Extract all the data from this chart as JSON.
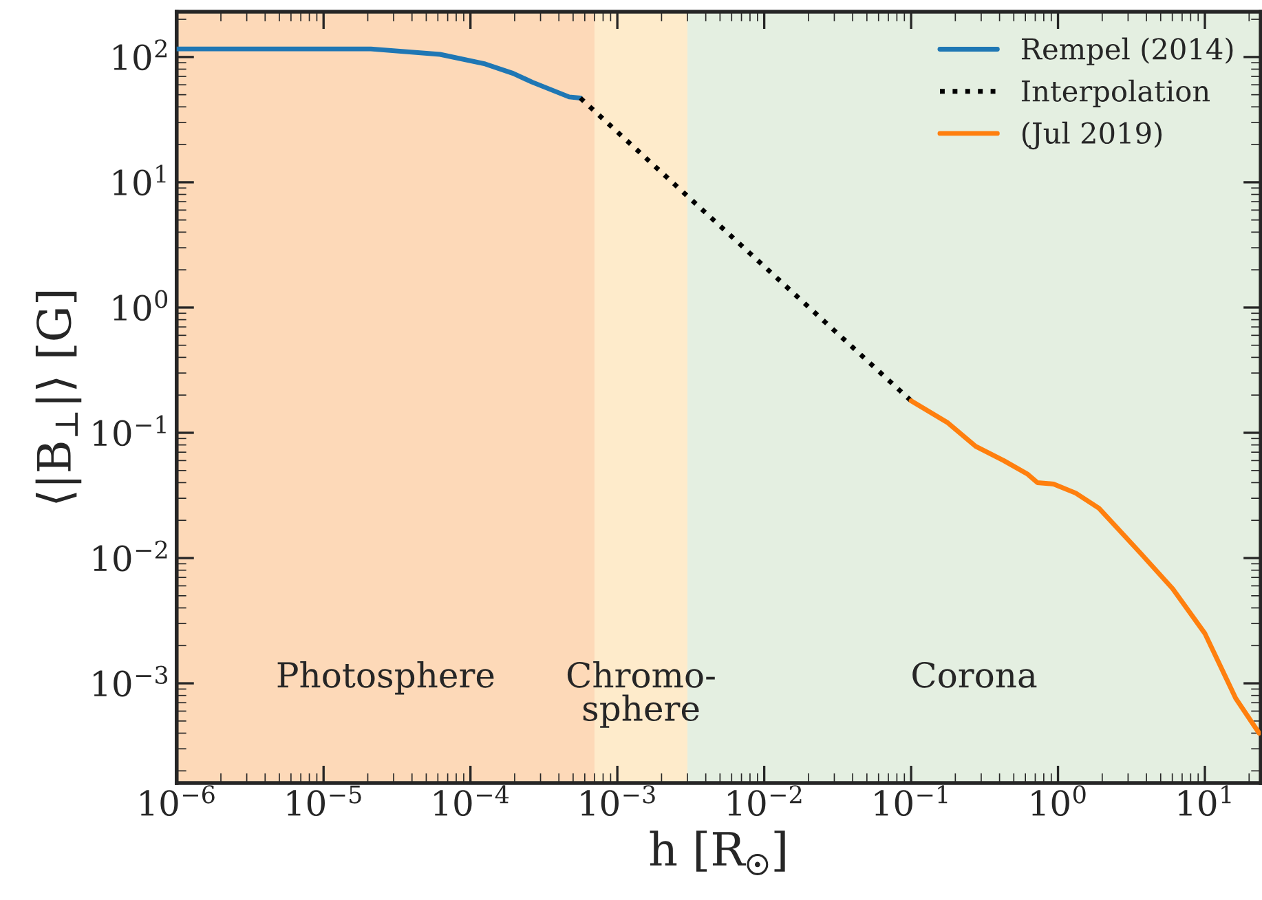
{
  "chart_data": {
    "type": "line",
    "xlabel": "h [R$_{☉}$]",
    "ylabel": "⟨|B$_{⊥}$|⟩ [G]",
    "log": "xy",
    "xlim": [
      1e-06,
      24
    ],
    "ylim": [
      0.00016,
      230
    ],
    "xticks": [
      {
        "value": 1e-06,
        "label": "10$^{−6}$"
      },
      {
        "value": 1e-05,
        "label": "10$^{−5}$"
      },
      {
        "value": 0.0001,
        "label": "10$^{−4}$"
      },
      {
        "value": 0.001,
        "label": "10$^{−3}$"
      },
      {
        "value": 0.01,
        "label": "10$^{−2}$"
      },
      {
        "value": 0.1,
        "label": "10$^{−1}$"
      },
      {
        "value": 1,
        "label": "10$^{0}$"
      },
      {
        "value": 10,
        "label": "10$^{1}$"
      }
    ],
    "yticks": [
      {
        "value": 0.001,
        "label": "10$^{−3}$"
      },
      {
        "value": 0.01,
        "label": "10$^{−2}$"
      },
      {
        "value": 0.1,
        "label": "10$^{−1}$"
      },
      {
        "value": 1,
        "label": "10$^{0}$"
      },
      {
        "value": 10,
        "label": "10$^{1}$"
      },
      {
        "value": 100,
        "label": "10$^{2}$"
      }
    ],
    "bands": [
      {
        "axis": "x",
        "from": 1e-06,
        "to": 0.0007,
        "label": "Photosphere",
        "color": "#fdd9b8"
      },
      {
        "axis": "x",
        "from": 0.0007,
        "to": 0.003,
        "label": "Chromo-\nsphere",
        "color": "#feebcb"
      },
      {
        "axis": "x",
        "from": 0.003,
        "to": 24,
        "label": "Corona",
        "color": "#e4efe1"
      }
    ],
    "legend": "top right",
    "grid": false,
    "series": [
      {
        "name": "Rempel (2014)",
        "color": "#1f77b4",
        "line_style": "solid",
        "x": [
          1e-06,
          1e-05,
          2.1e-05,
          6.2e-05,
          0.000126,
          0.000195,
          0.000263,
          0.00047,
          0.00056
        ],
        "values": [
          116,
          116,
          116,
          105,
          88,
          74,
          63,
          48,
          47
        ]
      },
      {
        "name": "Interpolation",
        "color": "#000000",
        "line_style": "dotted",
        "x": [
          0.00056,
          0.1
        ],
        "values": [
          47,
          0.18
        ]
      },
      {
        "name": "(Jul 2019)",
        "color": "#ff7f0e",
        "line_style": "solid",
        "x": [
          0.1,
          0.178,
          0.275,
          0.427,
          0.617,
          0.724,
          0.933,
          1.32,
          1.9,
          3.63,
          6.03,
          10,
          16.2,
          23.4
        ],
        "values": [
          0.18,
          0.12,
          0.078,
          0.06,
          0.047,
          0.04,
          0.039,
          0.033,
          0.025,
          0.011,
          0.0057,
          0.0025,
          0.00076,
          0.0004
        ]
      }
    ]
  }
}
